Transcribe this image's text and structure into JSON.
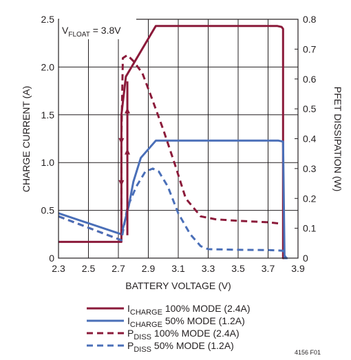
{
  "chart_data": {
    "type": "line",
    "annotation": {
      "prefix": "V",
      "sub": "FLOAT",
      "suffix": " = 3.8V"
    },
    "xlabel": "BATTERY VOLTAGE (V)",
    "ylabel": "CHARGE CURRENT (A)",
    "y2label": "PFET DISSIPATION (W)",
    "xlim": [
      2.3,
      3.9
    ],
    "ylim": [
      0,
      2.5
    ],
    "y2lim": [
      0,
      0.8
    ],
    "xticks": [
      "2.3",
      "2.5",
      "2.7",
      "2.9",
      "3.1",
      "3.3",
      "3.5",
      "3.7",
      "3.9"
    ],
    "yticks": [
      "0",
      "0.5",
      "1.0",
      "1.5",
      "2.0",
      "2.5"
    ],
    "y2ticks": [
      "0",
      "0.1",
      "0.2",
      "0.3",
      "0.4",
      "0.5",
      "0.6",
      "0.7",
      "0.8"
    ],
    "grid": true,
    "figure_id": "4156 F01",
    "colors": {
      "full_mode": "#8b1a3a",
      "half_mode": "#4a6fb8"
    },
    "series": [
      {
        "name": "ICHARGE 100% MODE (2.4A)",
        "legend": {
          "main": "I",
          "sub": "CHARGE",
          "rest": " 100% MODE (2.4A)"
        },
        "axis": "left",
        "style": "solid",
        "color": "#8b1a3a",
        "x": [
          2.3,
          2.72,
          2.72,
          2.75,
          2.95,
          3.76,
          3.79,
          3.8,
          3.8,
          3.82
        ],
        "y": [
          0.17,
          0.17,
          1.5,
          1.9,
          2.43,
          2.43,
          2.42,
          2.4,
          0.0,
          0.0
        ]
      },
      {
        "name": "ICHARGE 50% MODE (1.2A)",
        "legend": {
          "main": "I",
          "sub": "CHARGE",
          "rest": " 50% MODE (1.2A)"
        },
        "axis": "left",
        "style": "solid",
        "color": "#4a6fb8",
        "x": [
          2.3,
          2.72,
          2.77,
          2.8,
          2.85,
          2.95,
          3.77,
          3.8,
          3.81,
          3.83
        ],
        "y": [
          0.47,
          0.25,
          0.55,
          0.8,
          1.05,
          1.23,
          1.23,
          1.22,
          0.0,
          0.0
        ]
      },
      {
        "name": "PDISS 100% MODE (2.4A)",
        "legend": {
          "main": "P",
          "sub": "DISS",
          "rest": " 100% MODE (2.4A)"
        },
        "axis": "right",
        "style": "dashed",
        "color": "#8b1a3a",
        "x": [
          2.3,
          2.72,
          2.72,
          2.73,
          2.76,
          2.8,
          2.86,
          2.92,
          3.0,
          3.08,
          3.15,
          3.25,
          3.35,
          3.5,
          3.7,
          3.79
        ],
        "y": [
          0.14,
          0.06,
          0.4,
          0.67,
          0.68,
          0.66,
          0.62,
          0.54,
          0.43,
          0.31,
          0.2,
          0.14,
          0.13,
          0.125,
          0.12,
          0.115
        ]
      },
      {
        "name": "PDISS 50% MODE (1.2A)",
        "legend": {
          "main": "P",
          "sub": "DISS",
          "rest": " 50% MODE (1.2A)"
        },
        "axis": "right",
        "style": "dashed",
        "color": "#4a6fb8",
        "x": [
          2.3,
          2.72,
          2.76,
          2.82,
          2.88,
          2.93,
          2.97,
          3.03,
          3.1,
          3.18,
          3.25,
          3.3,
          3.5,
          3.7,
          3.8,
          3.82
        ],
        "y": [
          0.14,
          0.06,
          0.17,
          0.24,
          0.29,
          0.3,
          0.29,
          0.24,
          0.15,
          0.08,
          0.04,
          0.03,
          0.028,
          0.027,
          0.025,
          0.0
        ]
      }
    ]
  }
}
